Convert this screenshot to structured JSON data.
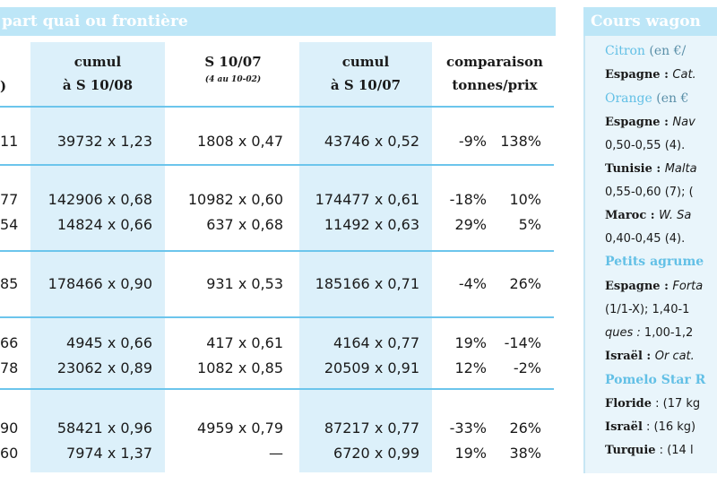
{
  "banner": {
    "left_title": "part quai ou frontière",
    "right_title": "Cours wagon"
  },
  "headers": {
    "partial": ")",
    "cumul_08_line1": "cumul",
    "cumul_08_line2": "à S 10/08",
    "s1007_line1": "S 10/07",
    "s1007_sub": "(4 au 10-02)",
    "cumul_07_line1": "cumul",
    "cumul_07_line2": "à S 10/07",
    "comp_line1": "comparaison",
    "comp_line2": "tonnes/prix"
  },
  "rows": [
    {
      "partial": "11",
      "cumul08": "39732 x 1,23",
      "s1007": "1808 x 0,47",
      "cumul07": "43746 x 0,52",
      "tonnes": "-9%",
      "prix": "138%"
    },
    {
      "partial": "77",
      "cumul08": "142906 x 0,68",
      "s1007": "10982 x 0,60",
      "cumul07": "174477 x 0,61",
      "tonnes": "-18%",
      "prix": "10%"
    },
    {
      "partial": "54",
      "cumul08": "14824 x 0,66",
      "s1007": "637 x 0,68",
      "cumul07": "11492 x 0,63",
      "tonnes": "29%",
      "prix": "5%"
    },
    {
      "partial": "85",
      "cumul08": "178466 x 0,90",
      "s1007": "931 x 0,53",
      "cumul07": "185166 x 0,71",
      "tonnes": "-4%",
      "prix": "26%"
    },
    {
      "partial": "66",
      "cumul08": "4945 x 0,66",
      "s1007": "417 x 0,61",
      "cumul07": "4164 x 0,77",
      "tonnes": "19%",
      "prix": "-14%"
    },
    {
      "partial": "78",
      "cumul08": "23062 x 0,89",
      "s1007": "1082 x 0,85",
      "cumul07": "20509 x 0,91",
      "tonnes": "12%",
      "prix": "-2%"
    },
    {
      "partial": "90",
      "cumul08": "58421 x 0,96",
      "s1007": "4959 x 0,79",
      "cumul07": "87217 x 0,77",
      "tonnes": "-33%",
      "prix": "26%"
    },
    {
      "partial": "60",
      "cumul08": "7974 x 1,37",
      "s1007": "—",
      "cumul07": "6720 x 0,99",
      "tonnes": "19%",
      "prix": "38%"
    }
  ],
  "right_column": {
    "citron_head": "Citron",
    "citron_unit": " (en €/",
    "citron_l1_bold": "Espagne : ",
    "citron_l1_it": "Cat.",
    "orange_head": "Orange",
    "orange_unit": " (en €",
    "orange_l1_bold": "Espagne : ",
    "orange_l1_it": "Nav",
    "orange_l2": "0,50-0,55 (4).",
    "orange_l3_bold": "Tunisie : ",
    "orange_l3_it": "Malta",
    "orange_l4": "0,55-0,60 (7); (",
    "orange_l5_bold": "Maroc : ",
    "orange_l5_it": "W. Sa",
    "orange_l6": "0,40-0,45 (4).",
    "petits_head": "Petits agrume",
    "petits_l1_bold": "Espagne : ",
    "petits_l1_it": "Forta",
    "petits_l2": "(1/1-X); 1,40-1",
    "petits_l3_it": "ques : ",
    "petits_l3": "1,00-1,2",
    "petits_l4_bold": "Israël : ",
    "petits_l4_it": "Or cat.",
    "pomelo_head": "Pomelo Star R",
    "pomelo_l1_bold": "Floride",
    "pomelo_l1": " : (17 kg",
    "pomelo_l2_bold": "Israël",
    "pomelo_l2": " : (16 kg)",
    "pomelo_l3_bold": "Turquie",
    "pomelo_l3": " : (14 l"
  },
  "colors": {
    "banner": "#bde6f7",
    "column_highlight": "#dcf0fa",
    "rule": "#6cc5ec",
    "heading_text": "#63c0e6"
  }
}
